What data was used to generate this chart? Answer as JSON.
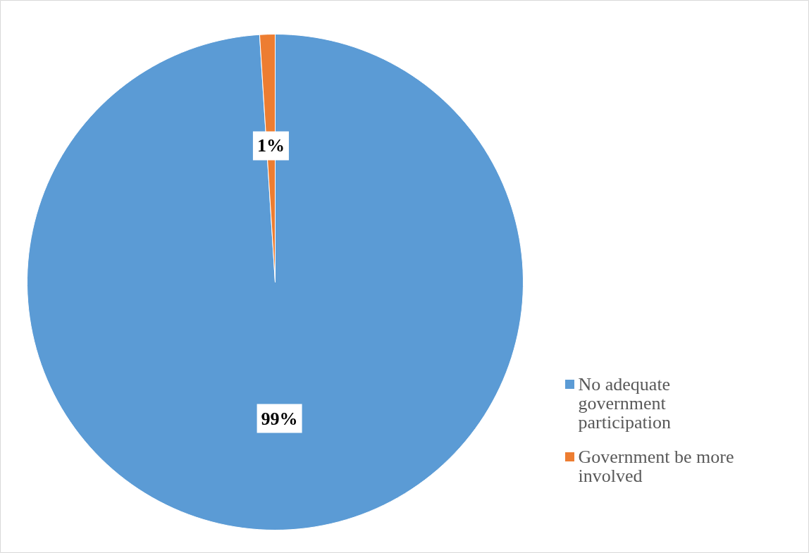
{
  "chart_data": {
    "type": "pie",
    "categories": [
      "No adequate government participation",
      "Government be more involved"
    ],
    "values": [
      99,
      1
    ],
    "colors": [
      "#5b9bd5",
      "#ed7d31"
    ],
    "value_labels": [
      "99%",
      "1%"
    ],
    "legend": "right"
  }
}
